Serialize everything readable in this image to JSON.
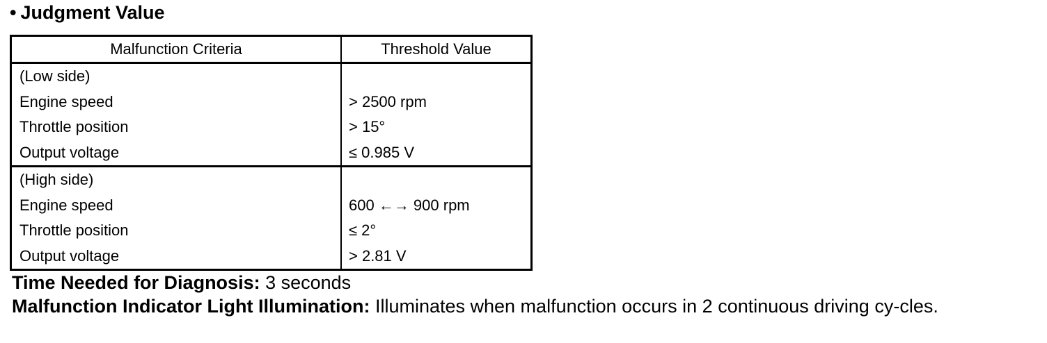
{
  "section": {
    "bullet": "•",
    "title": "Judgment Value"
  },
  "table": {
    "headers": [
      "Malfunction Criteria",
      "Threshold Value"
    ],
    "groups": [
      {
        "label": "(Low side)",
        "rows": [
          {
            "criteria": "Engine speed",
            "value": "> 2500 rpm"
          },
          {
            "criteria": "Throttle position",
            "value": "> 15°"
          },
          {
            "criteria": "Output voltage",
            "value": "≤ 0.985 V"
          }
        ]
      },
      {
        "label": "(High side)",
        "rows": [
          {
            "criteria": "Engine speed",
            "value": "600 ←→ 900 rpm"
          },
          {
            "criteria": "Throttle position",
            "value": "≤ 2°"
          },
          {
            "criteria": "Output voltage",
            "value": "> 2.81 V"
          }
        ]
      }
    ]
  },
  "footer": {
    "time_label": "Time Needed for Diagnosis:",
    "time_value": " 3 seconds",
    "mil_label": "Malfunction Indicator Light Illumination:",
    "mil_value": " Illuminates when malfunction occurs in 2 continuous driving cy-cles."
  }
}
